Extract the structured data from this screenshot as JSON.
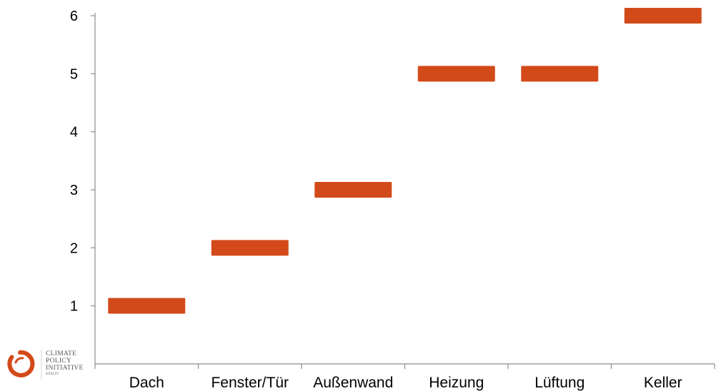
{
  "chart_data": {
    "type": "bar",
    "categories": [
      "Dach",
      "Fenster/Tür",
      "Außenwand",
      "Heizung",
      "Lüftung",
      "Keller"
    ],
    "values": [
      1,
      2,
      3,
      5,
      5,
      6
    ],
    "title": "",
    "xlabel": "",
    "ylabel": "",
    "ylim": [
      0,
      6
    ],
    "yticks": [
      1,
      2,
      3,
      4,
      5,
      6
    ],
    "grid": false,
    "legend": "none",
    "bar_color": "#D34A1A"
  },
  "logo": {
    "lines": [
      "CLIMATE",
      "POLICY",
      "INITIATIVE",
      "BERLIN"
    ],
    "ring_color": "#D34A1A"
  }
}
